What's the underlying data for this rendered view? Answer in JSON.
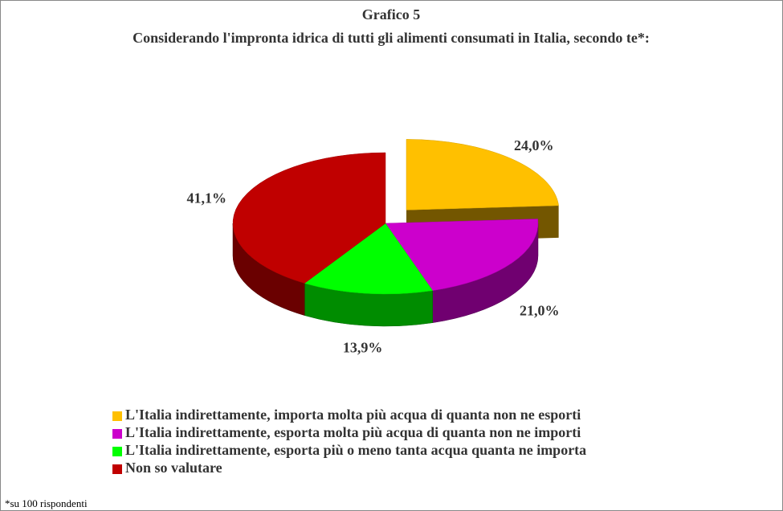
{
  "chart_data": {
    "type": "pie",
    "title": "Grafico 5",
    "subtitle": "Considerando l'impronta idrica di tutti gli alimenti consumati in Italia, secondo te*:",
    "categories": [
      "L'Italia indirettamente, importa molta più acqua di quanta non ne esporti",
      "L'Italia indirettamente, esporta molta più acqua di quanta non ne importi",
      "L'Italia indirettamente, esporta più o meno tanta acqua quanta ne importa",
      "Non so valutare"
    ],
    "values": [
      24.0,
      21.0,
      13.9,
      41.1
    ],
    "value_labels": [
      "24,0%",
      "21,0%",
      "13,9%",
      "41,1%"
    ],
    "colors": [
      "#ffc000",
      "#cc00cc",
      "#00ff00",
      "#c00000"
    ],
    "note": "*su 100 rispondenti"
  }
}
